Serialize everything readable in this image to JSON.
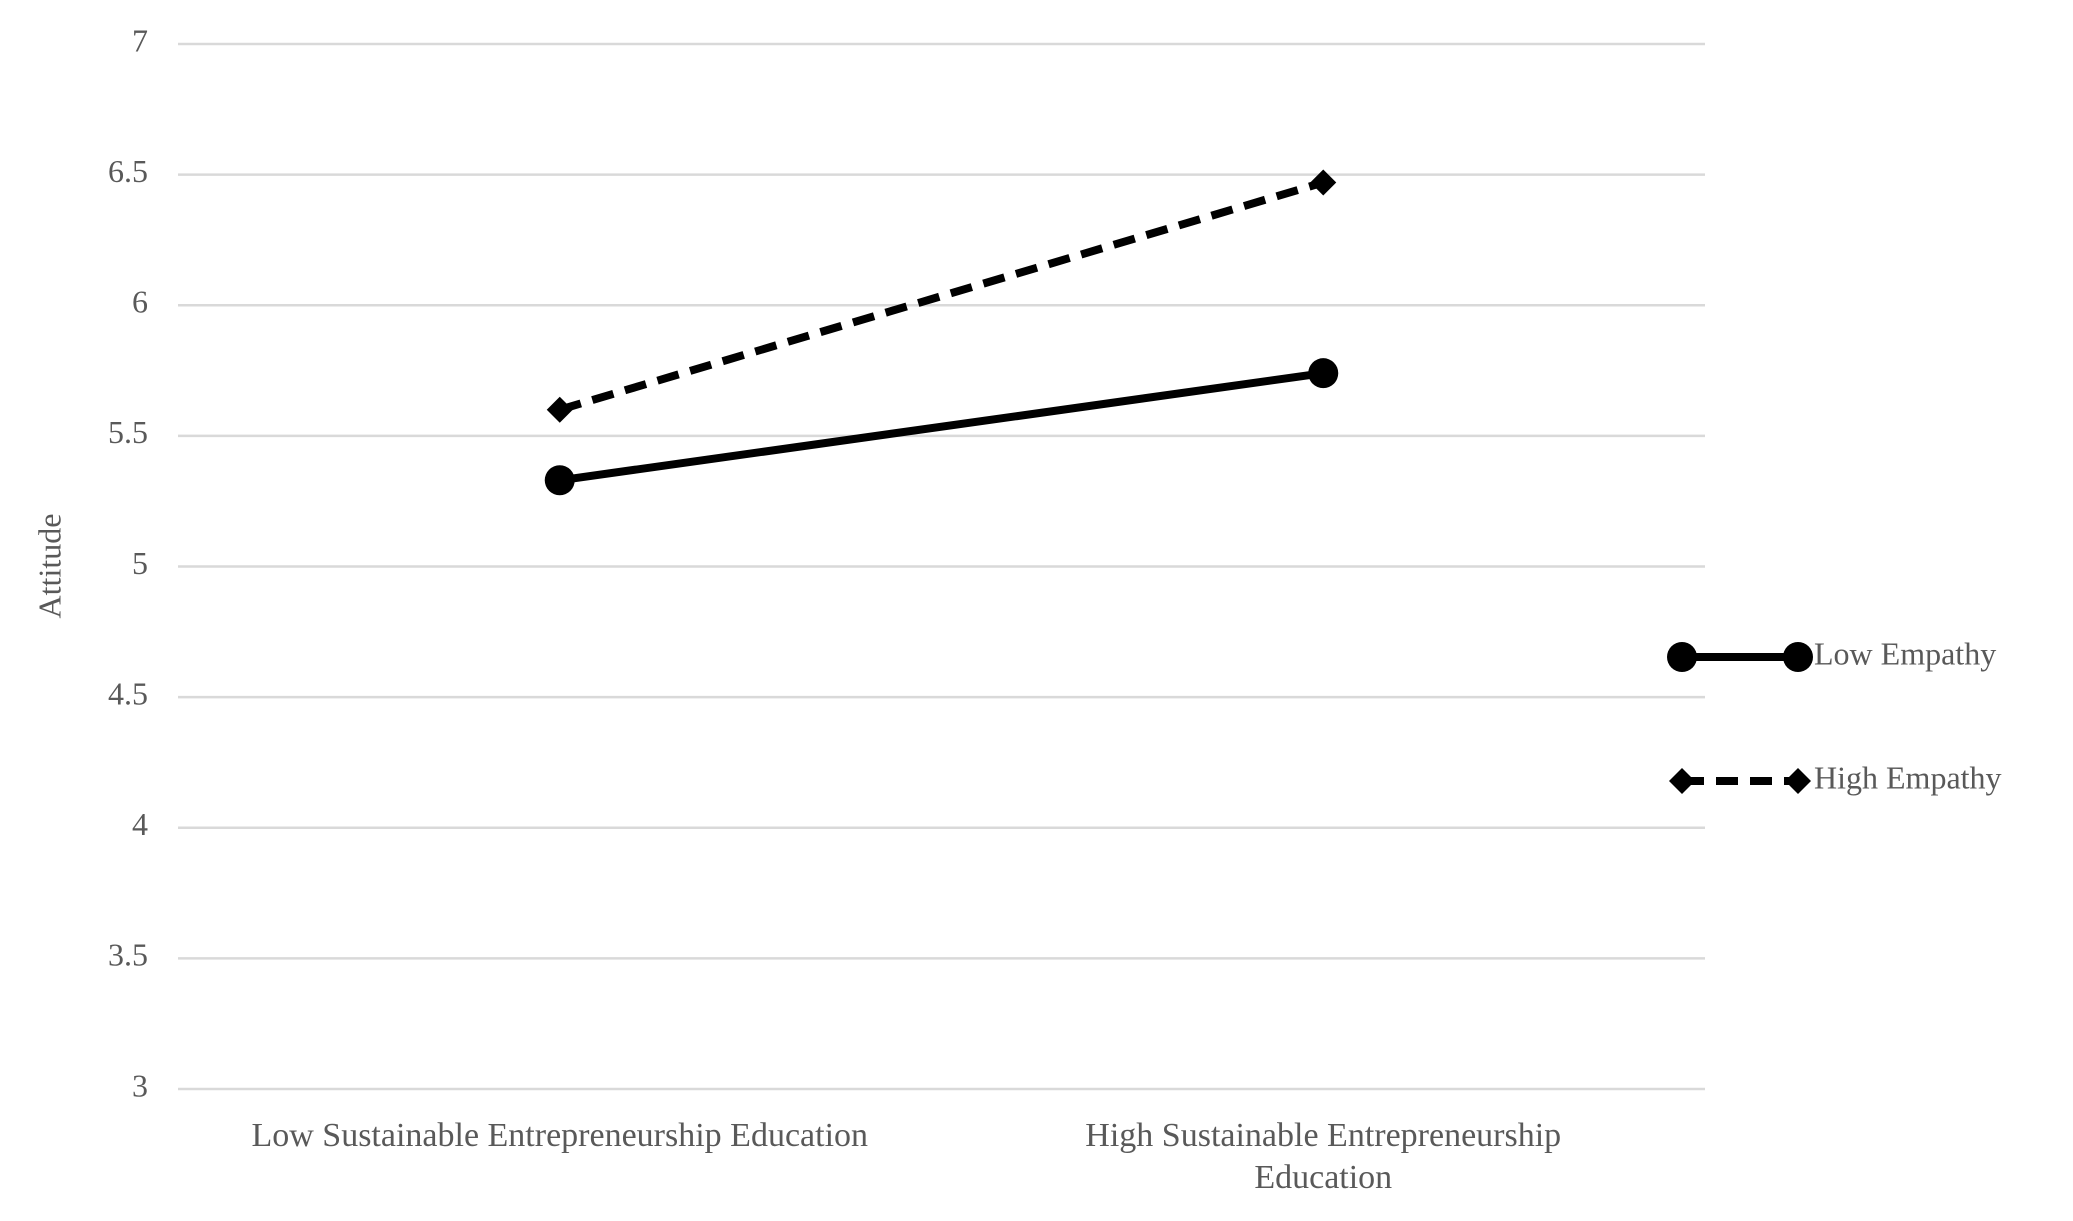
{
  "chart_data": {
    "type": "line",
    "y_label": "Attitude",
    "categories": [
      "Low Sustainable Entrepreneurship Education",
      "High Sustainable Entrepreneurship Education"
    ],
    "series": [
      {
        "name": "Low Empathy",
        "color": "#000000",
        "line_style": "solid",
        "marker": "circle",
        "values": [
          5.33,
          5.74
        ]
      },
      {
        "name": "High Empathy",
        "color": "#000000",
        "line_style": "dashed",
        "marker": "diamond",
        "values": [
          5.6,
          6.47
        ]
      }
    ],
    "ylim": [
      3,
      7
    ],
    "yticks": [
      3,
      3.5,
      4,
      4.5,
      5,
      5.5,
      6,
      6.5,
      7
    ],
    "grid": true,
    "legend": "right"
  }
}
